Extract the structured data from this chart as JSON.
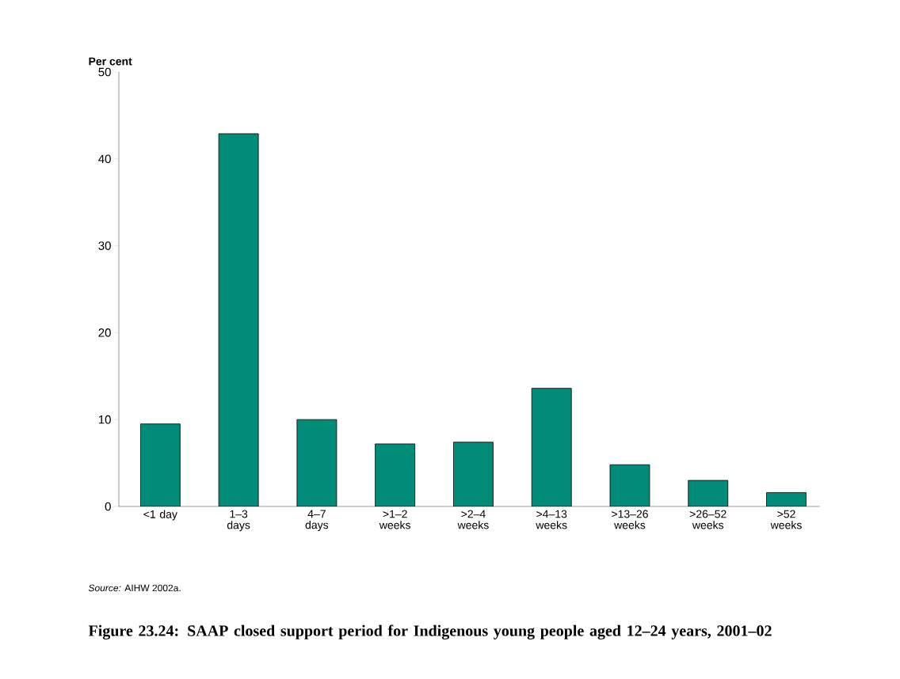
{
  "chart_data": {
    "type": "bar",
    "title": "Figure 23.24: SAAP closed support period for Indigenous young people aged 12–24 years, 2001–02",
    "ylabel": "Per cent",
    "categories": [
      "<1 day",
      "1–3 days",
      "4–7 days",
      ">1–2 weeks",
      ">2–4 weeks",
      ">4–13 weeks",
      ">13–26 weeks",
      ">26–52 weeks",
      ">52 weeks"
    ],
    "values": [
      9.5,
      42.9,
      10.0,
      7.2,
      7.4,
      13.6,
      4.8,
      3.0,
      1.6
    ],
    "color": "#008c78",
    "ylim": [
      0,
      50
    ],
    "yticks": [
      0,
      10,
      20,
      30,
      40,
      50
    ],
    "annotations": [
      "*Source:* AIHW 2002a."
    ]
  }
}
